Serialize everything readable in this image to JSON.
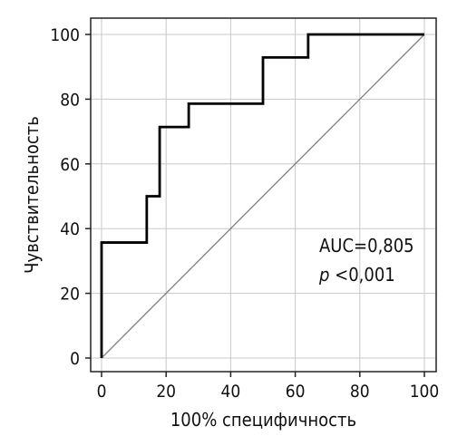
{
  "chart_data": {
    "type": "line",
    "title": "",
    "xlabel": "100% специфичность",
    "ylabel": "Чувствительность",
    "xlim": [
      0,
      100
    ],
    "ylim": [
      0,
      100
    ],
    "x_ticks": [
      0,
      20,
      40,
      60,
      80,
      100
    ],
    "y_ticks": [
      0,
      20,
      40,
      60,
      80,
      100
    ],
    "x_tick_labels": [
      "0",
      "20",
      "40",
      "60",
      "80",
      "100"
    ],
    "y_tick_labels": [
      "0",
      "20",
      "40",
      "60",
      "80",
      "100"
    ],
    "grid": true,
    "legend": "none",
    "colors": {
      "roc_line": "#000000",
      "reference_line": "#808080",
      "grid": "#c8c8c8",
      "frame": "#222222"
    },
    "series": [
      {
        "x": [
          0,
          0,
          14,
          14,
          18,
          18,
          27,
          27,
          50,
          50,
          64,
          64,
          100
        ],
        "y": [
          0,
          35.7,
          35.7,
          50,
          50,
          71.4,
          71.4,
          78.6,
          78.6,
          92.9,
          92.9,
          100,
          100
        ]
      },
      {
        "x": [
          0,
          100
        ],
        "y": [
          0,
          100
        ]
      }
    ],
    "annotations": {
      "auc": "AUC=0,805",
      "p_symbol": "p",
      "p_rest": " <0,001"
    }
  }
}
